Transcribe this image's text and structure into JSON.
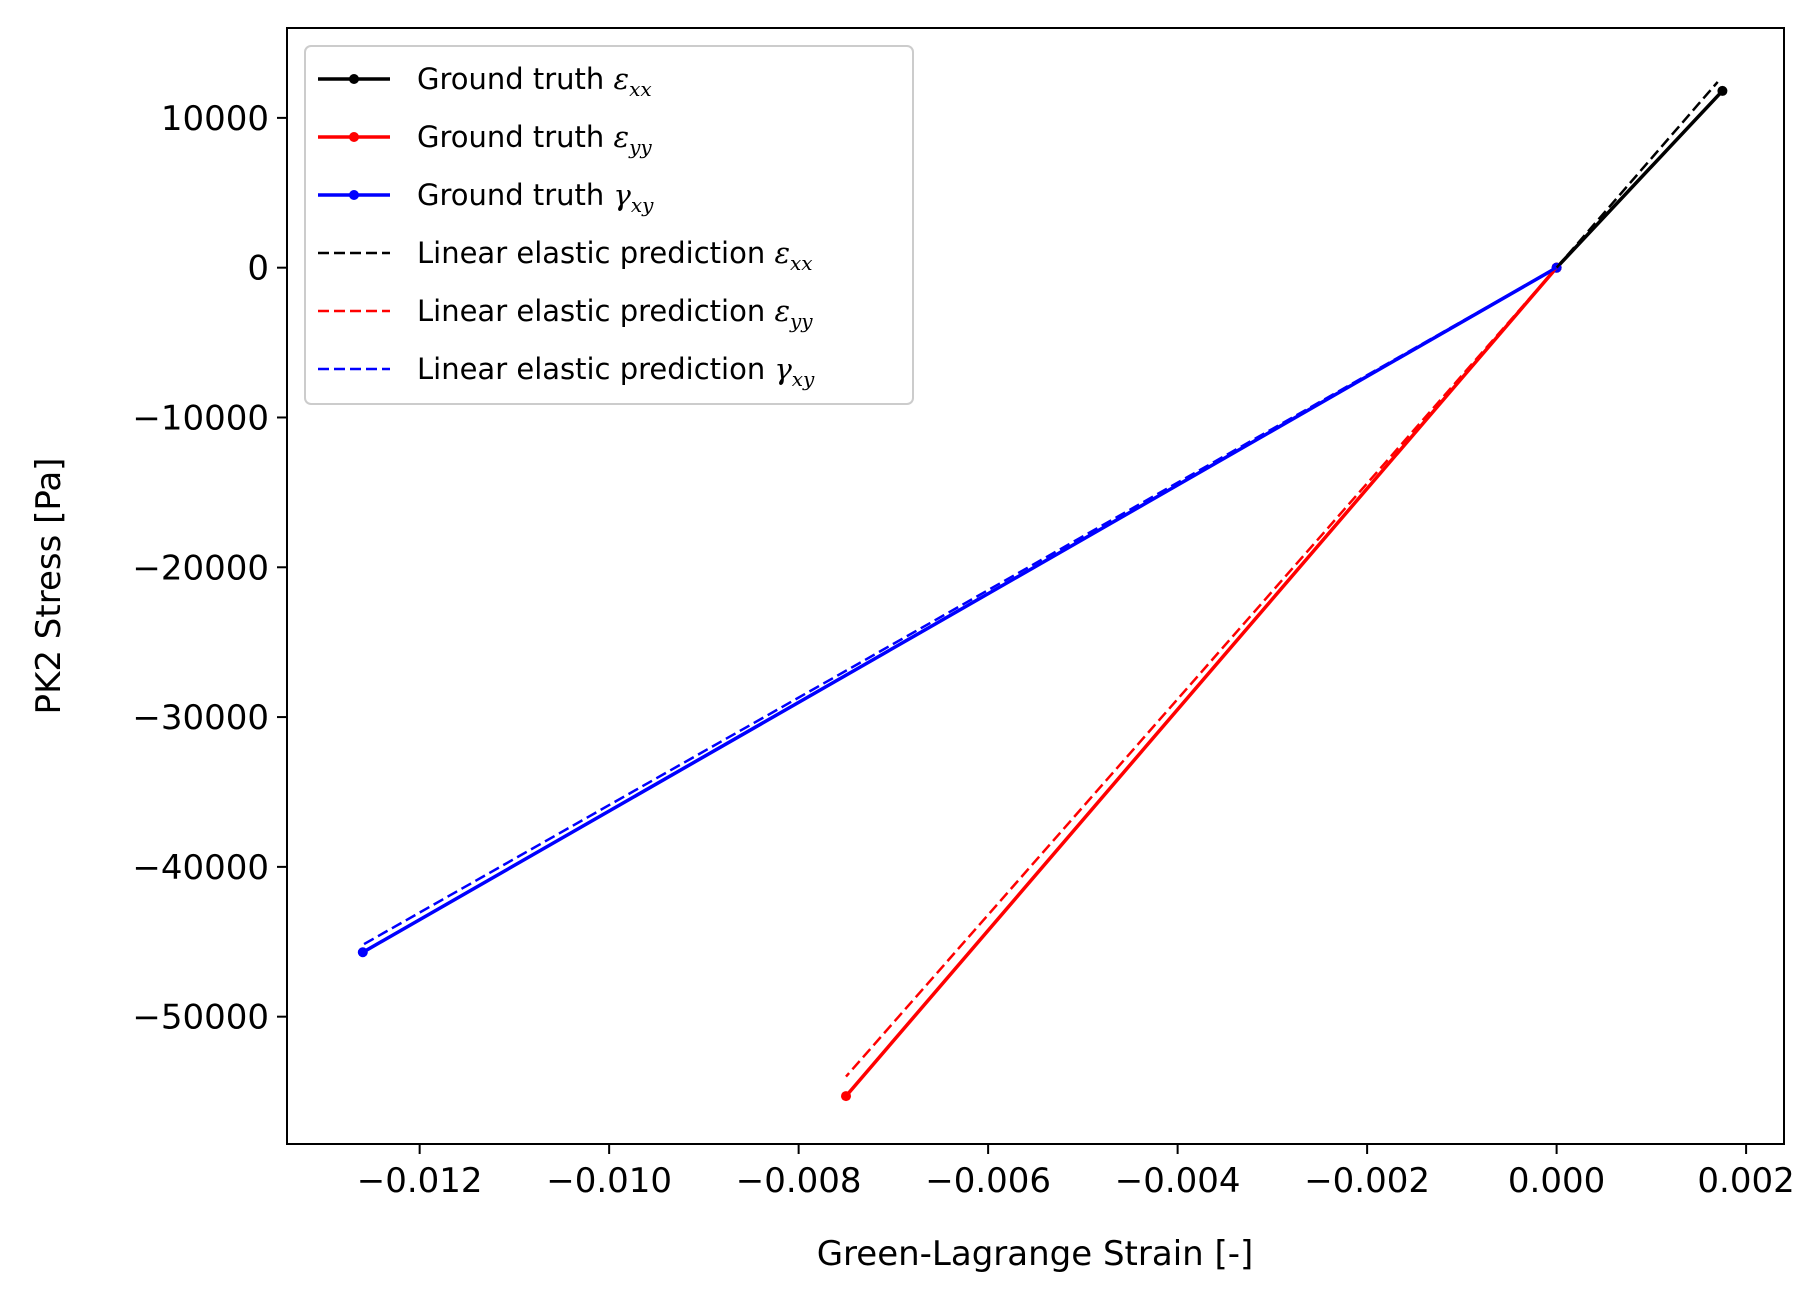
{
  "chart_data": {
    "type": "line",
    "xlabel": "Green-Lagrange Strain [-]",
    "ylabel": "PK2 Stress [Pa]",
    "xlim": [
      -0.0134,
      0.0024
    ],
    "ylim": [
      -58500,
      16000
    ],
    "grid": false,
    "legend_position": "top-left",
    "x_ticks": [
      -0.012,
      -0.01,
      -0.008,
      -0.006,
      -0.004,
      -0.002,
      0.0,
      0.002
    ],
    "x_tick_labels": [
      "−0.012",
      "−0.010",
      "−0.008",
      "−0.006",
      "−0.004",
      "−0.002",
      "0.000",
      "0.002"
    ],
    "y_ticks": [
      10000,
      0,
      -10000,
      -20000,
      -30000,
      -40000,
      -50000
    ],
    "y_tick_labels": [
      "10000",
      "0",
      "−10000",
      "−20000",
      "−30000",
      "−40000",
      "−50000"
    ],
    "series": [
      {
        "name": "Ground truth",
        "sym": "ε",
        "sub": "xx",
        "style": "solid-marker",
        "color": "#000000",
        "x": [
          0.0,
          0.00175
        ],
        "y": [
          0,
          11800
        ]
      },
      {
        "name": "Ground truth",
        "sym": "ε",
        "sub": "yy",
        "style": "solid-marker",
        "color": "#ff0000",
        "x": [
          0.0,
          -0.0075
        ],
        "y": [
          0,
          -55300
        ]
      },
      {
        "name": "Ground truth",
        "sym": "γ",
        "sub": "xy",
        "style": "solid-marker",
        "color": "#0000ff",
        "x": [
          0.0,
          -0.0126
        ],
        "y": [
          0,
          -45700
        ]
      },
      {
        "name": "Linear elastic prediction",
        "sym": "ε",
        "sub": "xx",
        "style": "dashed",
        "color": "#000000",
        "x": [
          0.0,
          0.0017
        ],
        "y": [
          0,
          12400
        ]
      },
      {
        "name": "Linear elastic prediction",
        "sym": "ε",
        "sub": "yy",
        "style": "dashed",
        "color": "#ff0000",
        "x": [
          0.0,
          -0.0075
        ],
        "y": [
          0,
          -54000
        ]
      },
      {
        "name": "Linear elastic prediction",
        "sym": "γ",
        "sub": "xy",
        "style": "dashed",
        "color": "#0000ff",
        "x": [
          0.0,
          -0.0126
        ],
        "y": [
          0,
          -45200
        ]
      }
    ]
  }
}
